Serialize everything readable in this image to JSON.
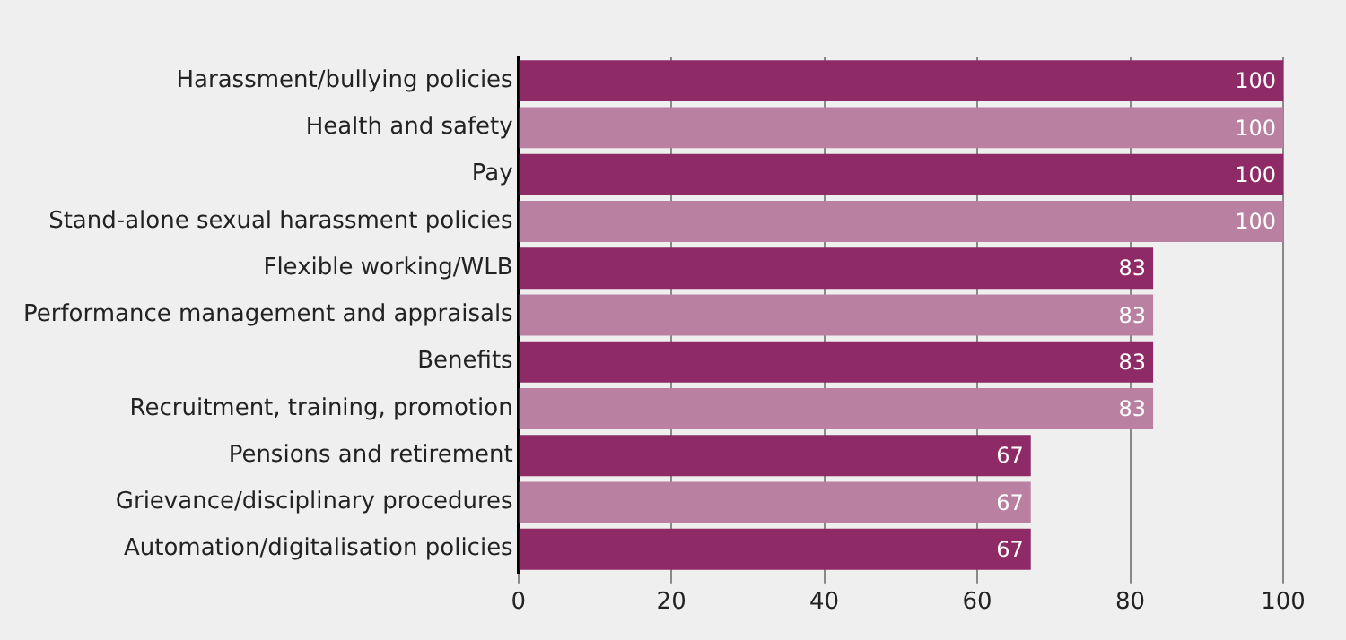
{
  "chart_data": {
    "type": "bar",
    "orientation": "horizontal",
    "categories": [
      "Harassment/bullying policies",
      "Health and safety",
      "Pay",
      "Stand-alone sexual harassment policies",
      "Flexible working/WLB",
      "Performance management and appraisals",
      "Benefits",
      "Recruitment, training, promotion",
      "Pensions and retirement",
      "Grievance/disciplinary procedures",
      "Automation/digitalisation policies"
    ],
    "values": [
      100,
      100,
      100,
      100,
      83,
      83,
      83,
      83,
      67,
      67,
      67
    ],
    "colors": [
      "#8e2b66",
      "#b980a2",
      "#8e2b66",
      "#b980a2",
      "#8e2b66",
      "#b980a2",
      "#8e2b66",
      "#b980a2",
      "#8e2b66",
      "#b980a2",
      "#8e2b66"
    ],
    "xlim": [
      0,
      100
    ],
    "xticks": [
      0,
      20,
      40,
      60,
      80,
      100
    ],
    "grid": "x",
    "data_labels": true
  }
}
